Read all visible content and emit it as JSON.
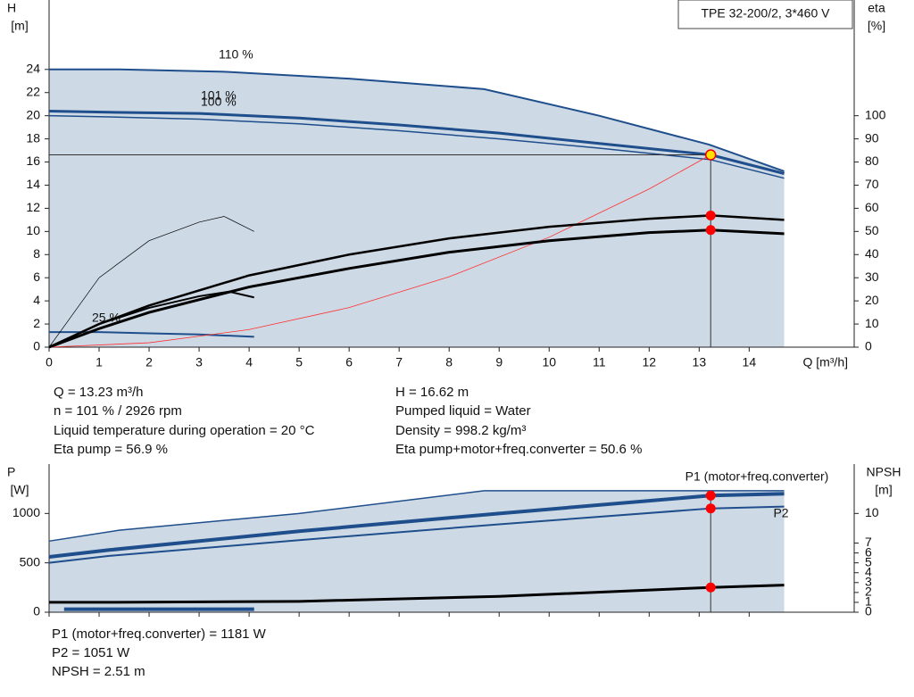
{
  "chart_data": [
    {
      "type": "line",
      "title": "TPE 32-200/2, 3*460 V",
      "y_label": [
        "H",
        "[m]"
      ],
      "y2_label": [
        "eta",
        "[%]"
      ],
      "x_label": "Q [m³/h]",
      "xlim": [
        0,
        16.1
      ],
      "xticks": [
        0,
        1,
        2,
        3,
        4,
        5,
        6,
        7,
        8,
        9,
        10,
        11,
        12,
        13,
        14
      ],
      "ylim": [
        0,
        30
      ],
      "yticks": [
        0,
        2,
        4,
        6,
        8,
        10,
        12,
        14,
        16,
        18,
        20,
        22,
        24
      ],
      "y2lim": [
        0,
        150
      ],
      "y2ticks": [
        0,
        10,
        20,
        30,
        40,
        50,
        60,
        70,
        80,
        90,
        100
      ],
      "series": [
        {
          "name": "110 %",
          "color": "#1f4e8c",
          "x": [
            0,
            1.4,
            3.5,
            6,
            8.7,
            11,
            13.2,
            14.7
          ],
          "values": [
            24,
            24,
            23.8,
            23.2,
            22.3,
            20,
            17.5,
            15.2
          ]
        },
        {
          "name": "101 %",
          "color": "#1f4e8c",
          "x": [
            0,
            1.2,
            3,
            5,
            7,
            9,
            11,
            13.23,
            14.7
          ],
          "values": [
            20.4,
            20.3,
            20.2,
            19.8,
            19.2,
            18.5,
            17.6,
            16.62,
            15.0
          ]
        },
        {
          "name": "100 %",
          "color": "#1f4e8c",
          "x": [
            0,
            1.2,
            3,
            5,
            7,
            9,
            11,
            13.23,
            14.7
          ],
          "values": [
            20.0,
            19.9,
            19.7,
            19.3,
            18.7,
            18.0,
            17.2,
            16.2,
            14.6
          ]
        },
        {
          "name": "25 %",
          "color": "#1f4e8c",
          "x": [
            0,
            1,
            2,
            3,
            4.1
          ],
          "values": [
            1.3,
            1.3,
            1.2,
            1.1,
            0.9
          ]
        },
        {
          "color": "#ff3030",
          "x": [
            0,
            2,
            4,
            6,
            8,
            10,
            12,
            13.23
          ],
          "values": [
            0,
            0.38,
            1.52,
            3.42,
            6.08,
            9.5,
            13.67,
            16.62
          ]
        },
        {
          "color": "#000000",
          "axis": "y2",
          "x": [
            0,
            1,
            2,
            4,
            6,
            8,
            10,
            12,
            13.23,
            14.7
          ],
          "values": [
            0,
            10,
            18,
            31,
            40,
            47,
            52,
            55.5,
            56.9,
            55
          ]
        },
        {
          "color": "#000000",
          "axis": "y2",
          "x": [
            0,
            1,
            2,
            4,
            6,
            8,
            10,
            12,
            13.23,
            14.7
          ],
          "values": [
            0,
            8,
            15,
            26,
            34,
            41,
            46,
            49.5,
            50.6,
            49
          ]
        },
        {
          "color": "#000000",
          "axis": "y2",
          "x": [
            0,
            1,
            2,
            3,
            3.5,
            4.1
          ],
          "values": [
            0,
            30,
            46,
            54,
            56.5,
            50
          ]
        },
        {
          "color": "#000000",
          "axis": "y2",
          "x": [
            0,
            1,
            2,
            3,
            3.6,
            4.1
          ],
          "values": [
            0,
            10,
            17,
            22,
            24,
            21.5
          ]
        }
      ],
      "markers": [
        {
          "x": 13.23,
          "y": 16.62,
          "color": "#ffe000"
        },
        {
          "x": 13.23,
          "y": 56.9,
          "axis": "y2",
          "color": "#ff0000"
        },
        {
          "x": 13.23,
          "y": 50.6,
          "axis": "y2",
          "color": "#ff0000"
        }
      ],
      "info": [
        "Q = 13.23 m³/h",
        "n = 101 % / 2926 rpm",
        "Liquid temperature during operation = 20 °C",
        "Eta pump = 56.9 %",
        "H = 16.62 m",
        "Pumped liquid = Water",
        "Density = 998.2 kg/m³",
        "Eta pump+motor+freq.converter = 50.6 %"
      ]
    },
    {
      "type": "line",
      "y_label": [
        "P",
        "[W]"
      ],
      "y2_label": [
        "NPSH",
        "[m]"
      ],
      "xlim": [
        0,
        16.1
      ],
      "xticks": [
        0,
        1,
        2,
        3,
        4,
        5,
        6,
        7,
        8,
        9,
        10,
        11,
        12,
        13,
        14
      ],
      "ylim": [
        0,
        1500
      ],
      "yticks": [
        0,
        500,
        1000
      ],
      "y2lim": [
        0,
        15
      ],
      "y2ticks": [
        0,
        1,
        2,
        3,
        4,
        5,
        6,
        7,
        10
      ],
      "series": [
        {
          "color": "#1f4e8c",
          "x": [
            0,
            1.4,
            5,
            8.7,
            14.7
          ],
          "values": [
            720,
            830,
            1000,
            1230,
            1230
          ]
        },
        {
          "name": "P1 (motor+freq.converter)",
          "color": "#1f4e8c",
          "x": [
            0,
            1.2,
            5,
            9,
            13.23,
            14.7
          ],
          "values": [
            560,
            630,
            820,
            1000,
            1181,
            1200
          ]
        },
        {
          "name": "P2",
          "color": "#1f4e8c",
          "x": [
            0,
            1.2,
            5,
            9,
            13.23,
            14.7
          ],
          "values": [
            500,
            570,
            730,
            890,
            1051,
            1070
          ]
        },
        {
          "color": "#000000",
          "axis": "y2",
          "x": [
            0,
            1.2,
            5,
            9,
            13.23,
            14.7
          ],
          "values": [
            1.0,
            1.0,
            1.1,
            1.6,
            2.51,
            2.75
          ]
        },
        {
          "color": "#1f4e8c",
          "x": [
            0.3,
            4.1
          ],
          "values": [
            30,
            30
          ]
        }
      ],
      "markers": [
        {
          "x": 13.23,
          "y": 1181,
          "color": "#ff0000"
        },
        {
          "x": 13.23,
          "y": 1051,
          "color": "#ff0000"
        },
        {
          "x": 13.23,
          "y": 2.51,
          "axis": "y2",
          "color": "#ff0000"
        }
      ],
      "info": [
        "P1 (motor+freq.converter) = 1181 W",
        "P2 = 1051 W",
        "NPSH = 2.51 m"
      ]
    }
  ]
}
